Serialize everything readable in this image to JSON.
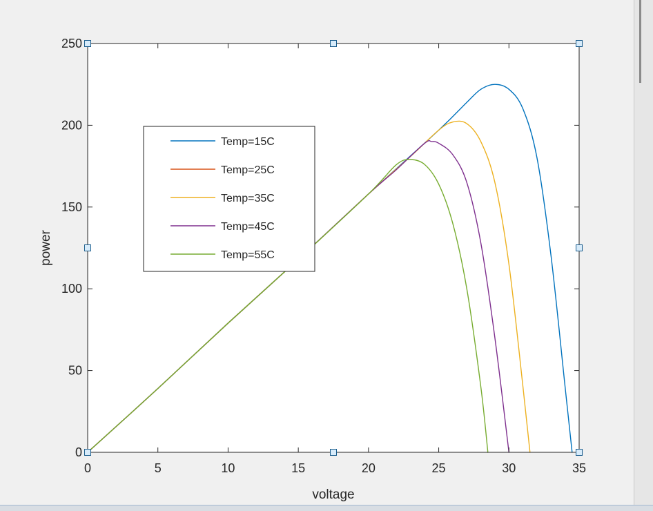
{
  "chart_data": {
    "type": "line",
    "title": "",
    "xlabel": "voltage",
    "ylabel": "power",
    "xlim": [
      0,
      35
    ],
    "ylim": [
      0,
      250
    ],
    "xticks": [
      0,
      5,
      10,
      15,
      20,
      25,
      30,
      35
    ],
    "yticks": [
      0,
      50,
      100,
      150,
      200,
      250
    ],
    "xtick_labels": [
      "0",
      "5",
      "10",
      "15",
      "20",
      "25",
      "30",
      "35"
    ],
    "ytick_labels": [
      "0",
      "50",
      "100",
      "150",
      "200",
      "250"
    ],
    "grid": false,
    "legend_position": "upper-left, inside axes",
    "series": [
      {
        "name": "Temp=15C",
        "color": "#0072BD",
        "x": [
          0,
          5,
          10,
          15,
          20,
          25,
          27,
          28,
          29,
          30,
          31,
          32,
          33,
          34,
          34.5
        ],
        "y": [
          0,
          39,
          79,
          118,
          158,
          197,
          214,
          222,
          225,
          222,
          210,
          180,
          120,
          40,
          0
        ]
      },
      {
        "name": "Temp=25C",
        "color": "#D95319",
        "x": [
          0,
          5,
          10,
          15,
          20,
          22
        ],
        "y": [
          0,
          39,
          79,
          118,
          158,
          173
        ]
      },
      {
        "name": "Temp=35C",
        "color": "#EDB120",
        "x": [
          0,
          5,
          10,
          15,
          20,
          23,
          25,
          26,
          27,
          28,
          29,
          30,
          31,
          31.5
        ],
        "y": [
          0,
          39,
          79,
          118,
          158,
          181,
          197,
          202,
          201,
          190,
          165,
          115,
          40,
          0
        ]
      },
      {
        "name": "Temp=45C",
        "color": "#7E2F8E",
        "x": [
          0,
          5,
          10,
          15,
          20,
          22,
          24,
          24.5,
          25,
          26,
          27,
          28,
          29,
          30
        ],
        "y": [
          0,
          39,
          79,
          118,
          158,
          173,
          189,
          190,
          189,
          182,
          165,
          128,
          70,
          0
        ]
      },
      {
        "name": "Temp=55C",
        "color": "#77AC30",
        "x": [
          0,
          5,
          10,
          15,
          20,
          22,
          23,
          24,
          25,
          26,
          27,
          28,
          28.5
        ],
        "y": [
          0,
          39,
          79,
          118,
          158,
          176,
          179,
          176,
          164,
          140,
          100,
          40,
          0
        ]
      }
    ]
  }
}
